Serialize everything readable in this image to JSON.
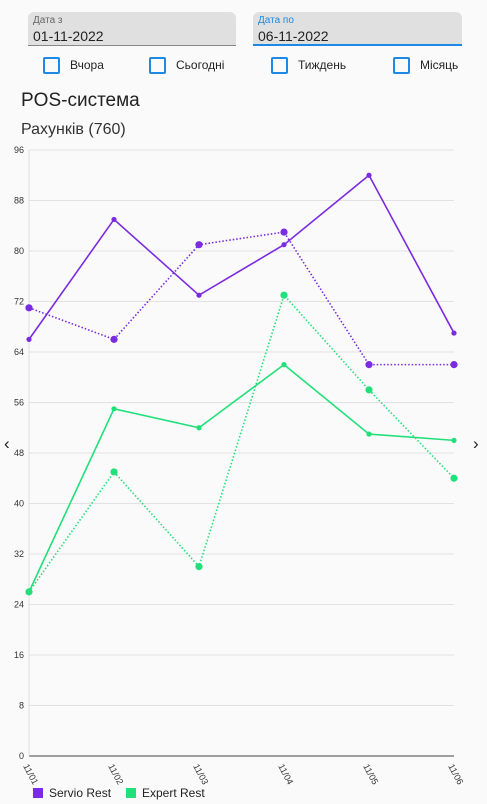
{
  "filters": {
    "date_from_label": "Дата з",
    "date_from_value": "01-11-2022",
    "date_to_label": "Дата по",
    "date_to_value": "06-11-2022"
  },
  "quick_ranges": [
    "Вчора",
    "Сьогодні",
    "Тиждень",
    "Місяць"
  ],
  "header": {
    "title": "POS-система",
    "subtitle": "Рахунків (760)"
  },
  "nav": {
    "prev": "‹",
    "next": "›"
  },
  "colors": {
    "servio": "#7b2be2",
    "expert": "#21e07a",
    "accent": "#1e88e5"
  },
  "chart_data": {
    "type": "line",
    "title": "",
    "categories": [
      "11/01",
      "11/02",
      "11/03",
      "11/04",
      "11/05",
      "11/06"
    ],
    "ylim": [
      0,
      96
    ],
    "yticks": [
      0,
      8,
      16,
      24,
      32,
      40,
      48,
      56,
      64,
      72,
      80,
      88,
      96
    ],
    "grid": true,
    "legend_position": "bottom-left",
    "series": [
      {
        "name": "Servio Rest",
        "color": "#7b2be2",
        "style": "solid",
        "values": [
          66,
          85,
          73,
          81,
          92,
          67
        ]
      },
      {
        "name": "Servio Rest",
        "color": "#7b2be2",
        "style": "dotted",
        "values": [
          71,
          66,
          81,
          83,
          62,
          62
        ]
      },
      {
        "name": "Expert Rest",
        "color": "#21e07a",
        "style": "solid",
        "values": [
          26,
          55,
          52,
          62,
          51,
          50
        ]
      },
      {
        "name": "Expert Rest",
        "color": "#21e07a",
        "style": "dotted",
        "values": [
          26,
          45,
          30,
          73,
          58,
          44
        ]
      }
    ],
    "legend": [
      {
        "label": "Servio Rest",
        "color": "#7b2be2"
      },
      {
        "label": "Expert Rest",
        "color": "#21e07a"
      }
    ]
  }
}
